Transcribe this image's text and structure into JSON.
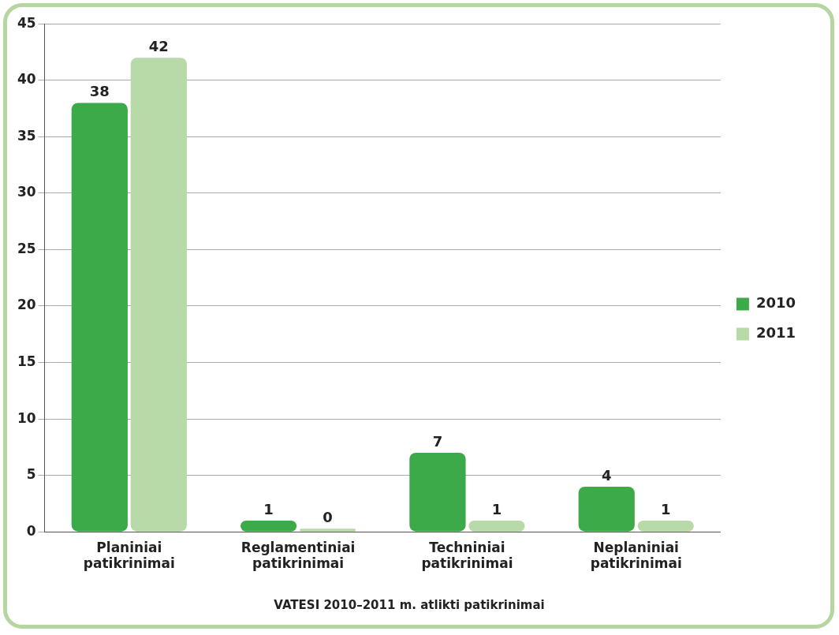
{
  "chart_data": {
    "type": "bar",
    "title": "VATESI 2010–2011 m. atlikti patikrinimai",
    "categories": [
      "Planiniai patikrinimai",
      "Reglamentiniai patikrinimai",
      "Techniniai patikrinimai",
      "Neplaniniai patikrinimai"
    ],
    "series": [
      {
        "name": "2010",
        "color": "#3daa4a",
        "values": [
          38,
          1,
          7,
          4
        ]
      },
      {
        "name": "2011",
        "color": "#b8d9a8",
        "values": [
          42,
          0,
          1,
          1
        ]
      }
    ],
    "ylim": [
      0,
      45
    ],
    "yticks": [
      0,
      5,
      10,
      15,
      20,
      25,
      30,
      35,
      40,
      45
    ],
    "grid": "y",
    "legend": "right",
    "data_labels": true
  }
}
